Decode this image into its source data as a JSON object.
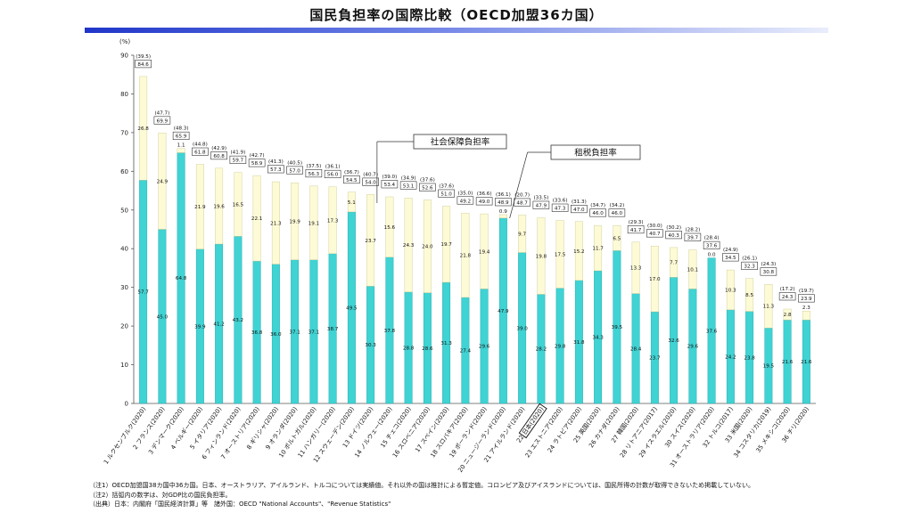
{
  "title": "国民負担率の国際比較（OECD加盟36カ国）",
  "chart_data": {
    "type": "bar",
    "stacked": true,
    "ylabel": "(%)",
    "ylim": [
      0,
      90
    ],
    "yticks": [
      0,
      10,
      20,
      30,
      40,
      50,
      60,
      70,
      80,
      90
    ],
    "grid": false,
    "categories": [
      "1 ルクセンブルク(2020)",
      "2 フランス(2020)",
      "3 デンマーク(2020)",
      "4 ベルギー(2020)",
      "5 イタリア(2020)",
      "6 フィンランド(2020)",
      "7 オーストリア(2020)",
      "8 ギリシャ(2020)",
      "9 オランダ(2020)",
      "10 ポルトガル(2020)",
      "11 ハンガリー(2020)",
      "12 スウェーデン(2020)",
      "13 ドイツ(2020)",
      "14 ノルウェー(2020)",
      "15 チェコ(2020)",
      "16 スロベニア(2020)",
      "17 スペイン(2020)",
      "18 スロバキア(2020)",
      "19 ポーランド(2020)",
      "20 ニュージーランド(2020)",
      "21 アイルランド(2020)",
      "22 日本(2020)",
      "23 エストニア(2020)",
      "24 ラトビア(2020)",
      "25 英国(2020)",
      "26 カナダ(2020)",
      "27 韓国(2020)",
      "28 リトアニア(2017)",
      "29 イスラエル(2020)",
      "30 スイス(2020)",
      "31 オーストラリア(2020)",
      "32 トルコ(2017)",
      "33 米国(2020)",
      "34 コスタリカ(2019)",
      "35 メキシコ(2020)",
      "36 チリ(2020)"
    ],
    "highlight_category": "22 日本(2020)",
    "series": [
      {
        "name": "租税負担率",
        "color": "#3fd3d3",
        "values": [
          57.7,
          45.0,
          64.8,
          39.9,
          41.2,
          43.2,
          36.8,
          36.0,
          37.1,
          37.1,
          38.7,
          49.5,
          30.3,
          37.8,
          28.8,
          28.6,
          31.3,
          27.4,
          29.6,
          47.9,
          39.0,
          28.2,
          29.8,
          31.8,
          34.3,
          39.5,
          28.4,
          23.7,
          32.6,
          29.6,
          37.6,
          24.2,
          23.8,
          19.5,
          21.6,
          21.6
        ]
      },
      {
        "name": "社会保障負担率",
        "color": "#fdfbd6",
        "values": [
          26.8,
          24.9,
          1.1,
          21.9,
          19.6,
          16.5,
          22.1,
          21.3,
          19.9,
          19.1,
          17.3,
          5.1,
          23.7,
          15.6,
          24.3,
          24.0,
          19.7,
          21.8,
          19.4,
          0.9,
          9.7,
          19.8,
          17.5,
          15.2,
          11.7,
          6.5,
          13.3,
          17.0,
          7.7,
          10.1,
          0.0,
          10.3,
          8.5,
          11.3,
          2.8,
          2.3
        ]
      }
    ],
    "totals": [
      84.6,
      69.9,
      65.9,
      61.8,
      60.8,
      59.7,
      58.9,
      57.3,
      57.0,
      56.3,
      56.0,
      54.5,
      54.0,
      53.4,
      53.1,
      52.6,
      51.0,
      49.2,
      49.0,
      48.9,
      48.7,
      47.9,
      47.3,
      47.0,
      46.0,
      46.0,
      41.7,
      40.7,
      40.3,
      39.7,
      37.6,
      34.5,
      32.3,
      30.8,
      24.3,
      23.9
    ],
    "gdp_ratio_labels": [
      "(39.5)",
      "(47.7)",
      "(48.3)",
      "(44.8)",
      "(42.9)",
      "(41.9)",
      "(42.7)",
      "(41.3)",
      "(40.5)",
      "(37.5)",
      "(36.1)",
      "(36.7)",
      "(40.7)",
      "(39.0)",
      "(34.9)",
      "(37.6)",
      "(37.6)",
      "(35.0)",
      "(36.6)",
      "(36.1)",
      "(20.7)",
      "(33.5)",
      "(33.6)",
      "(31.3)",
      "(34.7)",
      "(34.2)",
      "(29.3)",
      "(30.0)",
      "(30.2)",
      "(28.2)",
      "(28.4)",
      "(24.9)",
      "(26.1)",
      "(24.3)",
      "(17.2)",
      "(19.7)"
    ],
    "callouts": [
      {
        "text": "社会保障負担率",
        "target_index": 13
      },
      {
        "text": "租税負担率",
        "target_index": 20
      }
    ]
  },
  "notes": [
    "（注1）OECD加盟国38カ国中36カ国。日本、オーストラリア、アイルランド、トルコについては実績値。それ以外の国は推計による暫定値。コロンビア及びアイスランドについては、国民所得の計数が取得できないため掲載していない。",
    "（注2）括弧内の数字は、対GDP比の国民負担率。",
    "（出典）日本：内閣府「国民経済計算」等　諸外国：OECD \"National Accounts\"、\"Revenue Statistics\""
  ]
}
